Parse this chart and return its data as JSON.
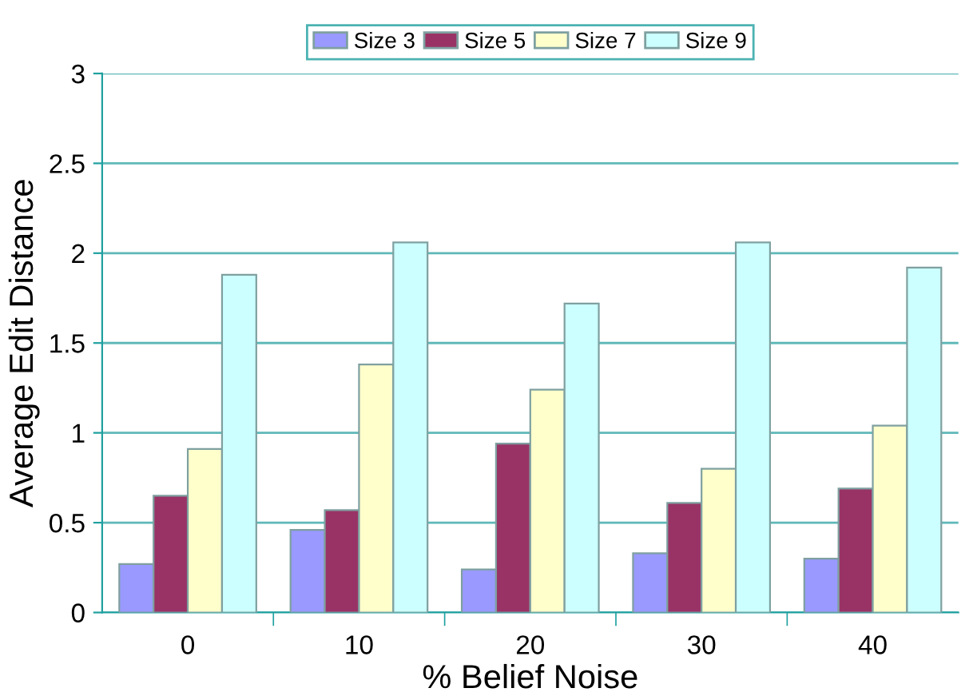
{
  "chart_data": {
    "type": "bar",
    "xlabel": "% Belief Noise",
    "ylabel": "Average Edit Distance",
    "categories": [
      "0",
      "10",
      "20",
      "30",
      "40"
    ],
    "series": [
      {
        "name": "Size 3",
        "color": "#9999ff",
        "values": [
          0.27,
          0.46,
          0.24,
          0.33,
          0.3
        ]
      },
      {
        "name": "Size 5",
        "color": "#993366",
        "values": [
          0.65,
          0.57,
          0.94,
          0.61,
          0.69
        ]
      },
      {
        "name": "Size 7",
        "color": "#ffffcc",
        "values": [
          0.91,
          1.38,
          1.24,
          0.8,
          1.04
        ]
      },
      {
        "name": "Size 9",
        "color": "#ccffff",
        "values": [
          1.88,
          2.06,
          1.72,
          2.06,
          1.92
        ]
      }
    ],
    "ylim": [
      0,
      3
    ],
    "yticks": [
      0,
      0.5,
      1,
      1.5,
      2,
      2.5,
      3
    ],
    "grid": "y",
    "legend": "top"
  }
}
